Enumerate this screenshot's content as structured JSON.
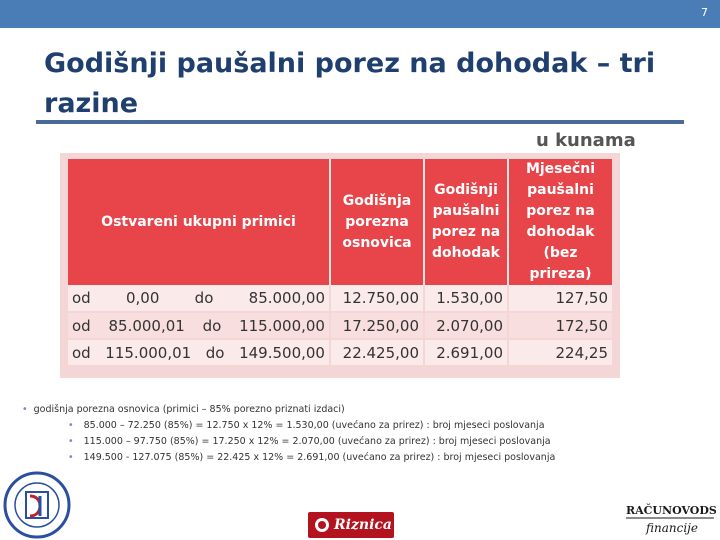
{
  "slide": {
    "number": "7"
  },
  "title": "Godišnji paušalni porez na dohodak – tri razine",
  "unit_label": "u kunama",
  "table": {
    "headers": [
      "Ostvareni ukupni primici",
      "Godišnja porezna osnovica",
      "Godišnji paušalni porez na dohodak",
      "Mjesečni paušalni porez na dohodak (bez prireza)"
    ],
    "rows": [
      {
        "from_word": "od",
        "from": "0,00",
        "to_word": "do",
        "to": "85.000,00",
        "base": "12.750,00",
        "annual_tax": "1.530,00",
        "monthly_tax": "127,50"
      },
      {
        "from_word": "od",
        "from": "85.000,01",
        "to_word": "do",
        "to": "115.000,00",
        "base": "17.250,00",
        "annual_tax": "2.070,00",
        "monthly_tax": "172,50"
      },
      {
        "from_word": "od",
        "from": "115.000,01",
        "to_word": "do",
        "to": "149.500,00",
        "base": "22.425,00",
        "annual_tax": "2.691,00",
        "monthly_tax": "224,25"
      }
    ]
  },
  "notes": {
    "main": "godišnja porezna osnovica (primici – 85% porezno priznati izdaci)",
    "items": [
      "85.000 – 72.250 (85%) = 12.750 x 12% = 1.530,00 (uvećano za prirez) : broj mjeseci poslovanja",
      "115.000 – 97.750 (85%) = 17.250 x 12% = 2.070,00 (uvećano za prirez) : broj mjeseci poslovanja",
      "149.500 - 127.075 (85%) = 22.425 x 12% = 2.691,00 (uvećano za prirez) : broj mjeseci poslovanja"
    ]
  },
  "logos": {
    "center": "Riznica",
    "right_top": "RAČUNOVODSTVO",
    "right_bottom": "financije"
  },
  "colors": {
    "header_red": "#e8454a",
    "title_blue": "#1f3f6e",
    "bar_blue": "#4a7db5"
  }
}
